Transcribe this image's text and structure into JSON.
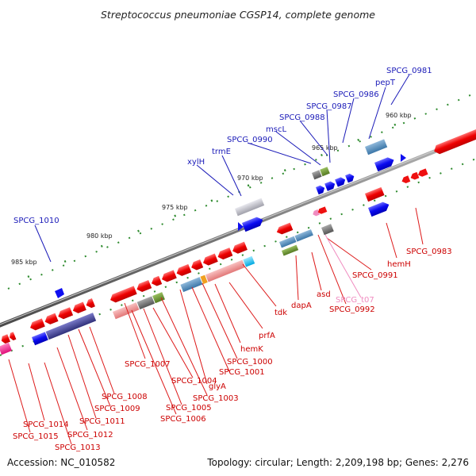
{
  "header": {
    "title": "Streptococcus pneumoniae CGSP14, complete genome"
  },
  "footer": {
    "accession": "Accession: NC_010582",
    "summary": "Topology: circular; Length: 2,209,198 bp; Genes: 2,276"
  },
  "colors": {
    "upper_label": "#1a1ab8",
    "lower_label": "#cc0000",
    "trna_label": "#f08cc0",
    "backbone": "#6e6e6e",
    "tick": "#2e8b2e",
    "forward_gene": "#1010f0",
    "reverse_gene": "#f01010"
  },
  "scale_labels": [
    "960 kbp",
    "965 kbp",
    "970 kbp",
    "975 kbp",
    "980 kbp",
    "985 kbp"
  ],
  "upper_labels": [
    "SPCG_0981",
    "pepT",
    "SPCG_0986",
    "SPCG_0987",
    "SPCG_0988",
    "mscL",
    "SPCG_0990",
    "trmE",
    "xylH",
    "SPCG_1010"
  ],
  "lower_labels": [
    "SPCG_0983",
    "hemH",
    "SPCG_0991",
    "SPCG_0992",
    "SPCG_t07",
    "asd",
    "dapA",
    "tdk",
    "prfA",
    "hemK",
    "SPCG_1000",
    "SPCG_1001",
    "glyA",
    "SPCG_1003",
    "SPCG_1004",
    "SPCG_1005",
    "SPCG_1006",
    "SPCG_1007",
    "SPCG_1008",
    "SPCG_1009",
    "SPCG_1011",
    "SPCG_1012",
    "SPCG_1013",
    "SPCG_1014",
    "SPCG_1015"
  ]
}
